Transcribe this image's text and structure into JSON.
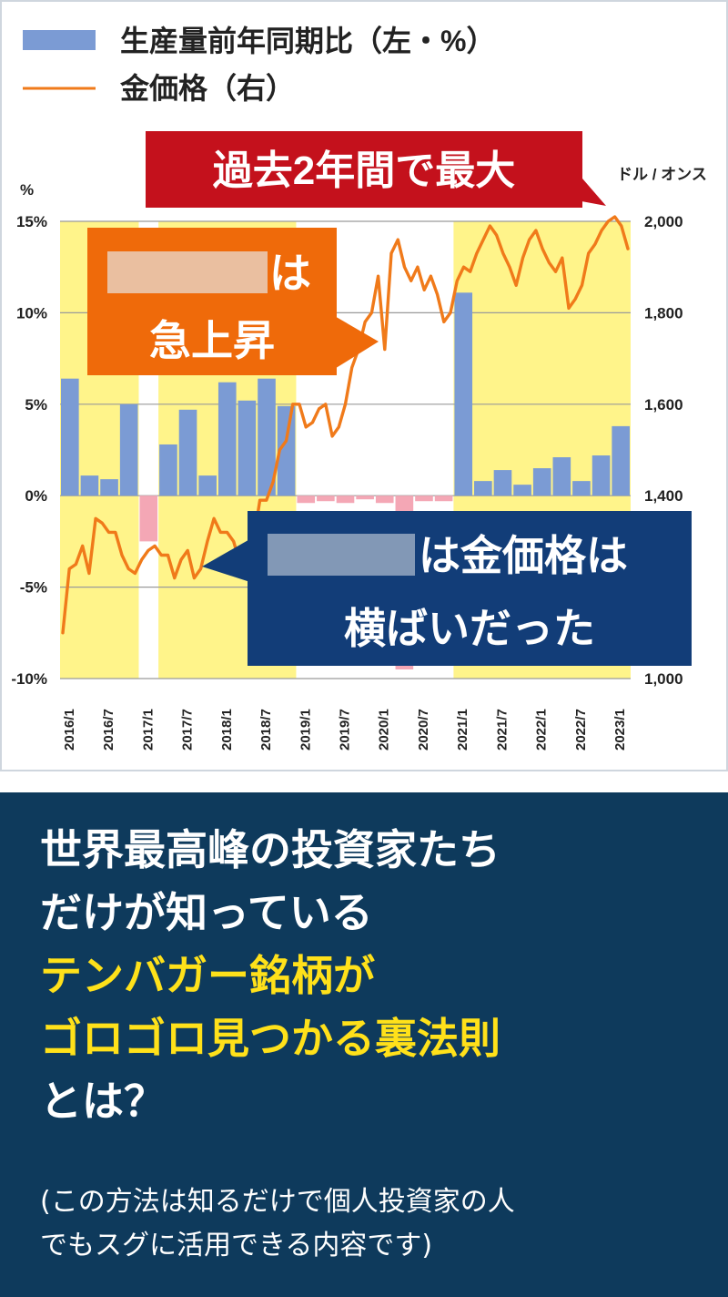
{
  "legend": {
    "bar_label": "生産量前年同期比（左・%）",
    "line_label": "金価格（右）"
  },
  "callouts": {
    "top": "過去2年間で最大",
    "orange_line1": "は",
    "orange_line2": "急上昇",
    "navy_line1": "は金価格は",
    "navy_line2": "横ばいだった"
  },
  "chart_data": {
    "type": "bar+line",
    "left_axis": {
      "unit": "%",
      "ticks": [
        "15%",
        "10%",
        "5%",
        "0%",
        "-5%",
        "-10%"
      ],
      "range": [
        -10,
        15
      ]
    },
    "right_axis": {
      "unit": "ドル / オンス",
      "ticks": [
        "2,000",
        "1,800",
        "1,600",
        "1,400",
        "1,000"
      ],
      "range": [
        1000,
        2000
      ]
    },
    "x_tick_labels": [
      "2016/1",
      "2016/7",
      "2017/1",
      "2017/7",
      "2018/1",
      "2018/7",
      "2019/1",
      "2019/7",
      "2020/1",
      "2020/7",
      "2021/1",
      "2021/7",
      "2022/1",
      "2022/7",
      "2023/1"
    ],
    "bars": {
      "series": [
        {
          "name": "生産量前年同期比（左・%）",
          "color": "#7b9bd4",
          "negative_color": "#f4a7b5",
          "values": [
            6.4,
            1.1,
            0.9,
            5.0,
            -2.5,
            2.8,
            4.7,
            1.1,
            6.2,
            5.2,
            6.4,
            4.9,
            -0.4,
            -0.3,
            -0.4,
            -0.2,
            -0.4,
            -9.5,
            -0.3,
            -0.3,
            11.1,
            0.8,
            1.4,
            0.6,
            1.5,
            2.1,
            0.8,
            2.2,
            3.8
          ]
        }
      ]
    },
    "line": {
      "series": [
        {
          "name": "金価格（右）",
          "color": "#f07a1a",
          "values": [
            1100,
            1240,
            1250,
            1290,
            1230,
            1350,
            1340,
            1320,
            1320,
            1270,
            1240,
            1230,
            1260,
            1280,
            1290,
            1270,
            1270,
            1220,
            1260,
            1280,
            1220,
            1240,
            1300,
            1350,
            1320,
            1320,
            1300,
            1250,
            1280,
            1300,
            1390,
            1390,
            1430,
            1500,
            1520,
            1600,
            1600,
            1550,
            1560,
            1590,
            1600,
            1530,
            1550,
            1600,
            1680,
            1720,
            1780,
            1800,
            1880,
            1720,
            1930,
            1960,
            1900,
            1870,
            1900,
            1850,
            1880,
            1840,
            1780,
            1800,
            1870,
            1900,
            1890,
            1930,
            1960,
            1990,
            1970,
            1930,
            1900,
            1860,
            1920,
            1960,
            1980,
            1940,
            1910,
            1890,
            1920,
            1810,
            1830,
            1860,
            1930,
            1950,
            1980,
            2000,
            2010,
            1990,
            1940
          ]
        }
      ]
    },
    "shaded_bands": [
      "bull",
      "bull",
      "flat",
      "bull"
    ]
  },
  "bottom": {
    "headline_lines": [
      {
        "text": "世界最高峰の投資家たち",
        "yellow": false
      },
      {
        "text": "だけが知っている",
        "yellow": false
      },
      {
        "text": "テンバガー銘柄が",
        "yellow": true
      },
      {
        "text": "ゴロゴロ見つかる裏法則",
        "yellow": true
      },
      {
        "text": "とは？",
        "yellow": false
      }
    ],
    "note_line1": "(この方法は知るだけで個人投資家の人",
    "note_line2": "でもスグに活用できる内容です)"
  },
  "colors": {
    "navy": "#0e3a5c",
    "yellow_band": "#fff48a",
    "bar_blue": "#7b9bd4",
    "bar_pink": "#f4a7b5",
    "line_orange": "#f07a1a",
    "callout_red": "#c4111c",
    "callout_orange": "#ef6a0a",
    "callout_navy": "#123d78"
  }
}
